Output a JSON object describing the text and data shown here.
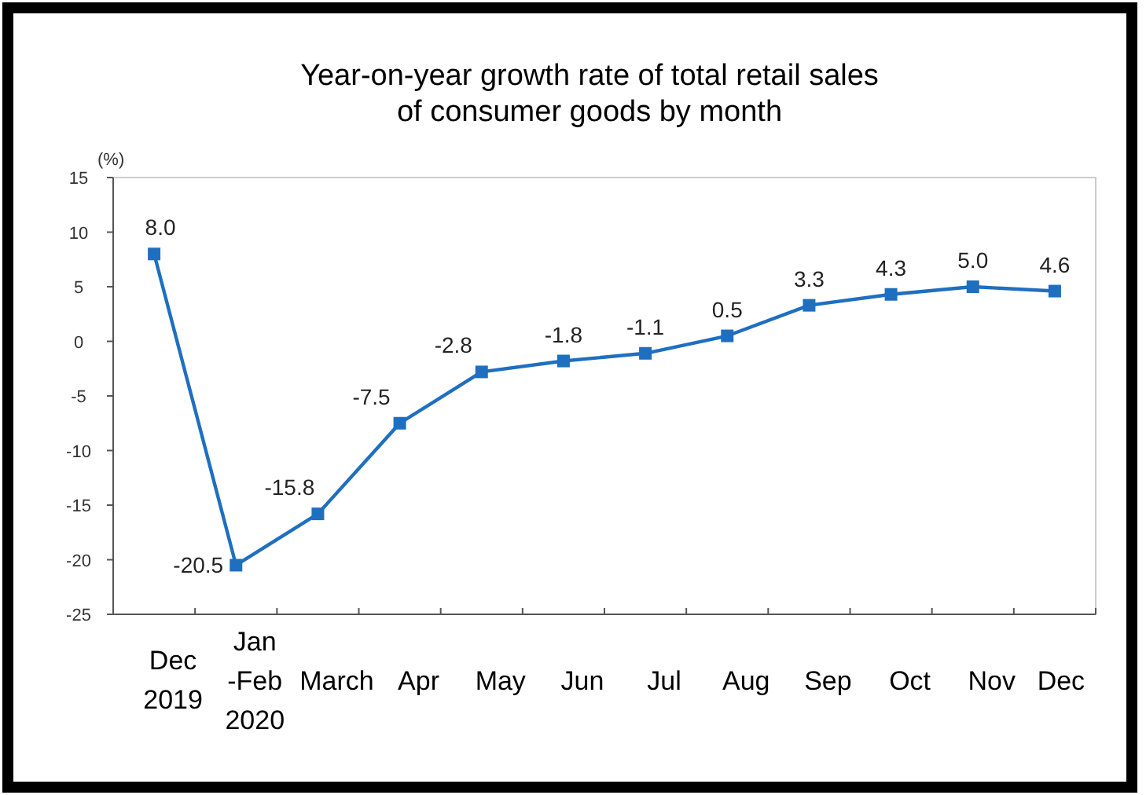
{
  "chart_data": {
    "type": "line",
    "title": "Year-on-year growth rate of total retail sales\nof consumer goods by month",
    "ylabel": "(%)",
    "categories": [
      "Dec\n2019",
      "Jan\n-Feb\n2020",
      "March",
      "Apr",
      "May",
      "Jun",
      "Jul",
      "Aug",
      "Sep",
      "Oct",
      "Nov",
      "Dec"
    ],
    "series": [
      {
        "color": "#1f6fc0",
        "values": [
          8.0,
          -20.5,
          -15.8,
          -7.5,
          -2.8,
          -1.8,
          -1.1,
          0.5,
          3.3,
          4.3,
          5.0,
          4.6
        ],
        "value_labels": [
          "8.0",
          "-20.5",
          "-15.8",
          "-7.5",
          "-2.8",
          "-1.8",
          "-1.1",
          "0.5",
          "3.3",
          "4.3",
          "5.0",
          "4.6"
        ]
      }
    ],
    "ylim": [
      -25,
      15
    ],
    "yticks": [
      -25,
      -20,
      -15,
      -10,
      -5,
      0,
      5,
      10,
      15
    ],
    "grid": false,
    "marker": "square",
    "line_style": "solid"
  }
}
